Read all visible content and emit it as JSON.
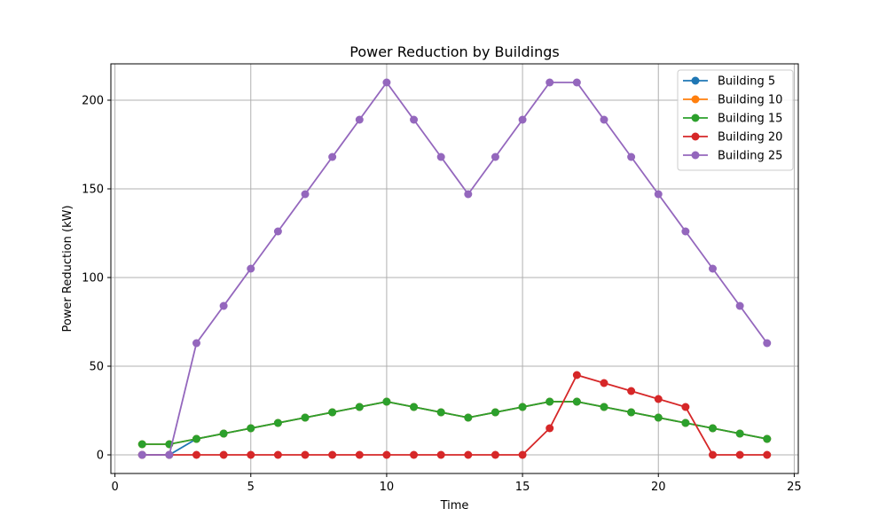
{
  "chart_data": {
    "type": "line",
    "title": "Power Reduction by Buildings",
    "xlabel": "Time",
    "ylabel": "Power Reduction (kW)",
    "xlim": [
      -0.15,
      25.15
    ],
    "ylim": [
      -10.5,
      220.5
    ],
    "xticks": [
      0,
      5,
      10,
      15,
      20,
      25
    ],
    "yticks": [
      0,
      50,
      100,
      150,
      200
    ],
    "grid": true,
    "legend_position": "top-right",
    "x": [
      1,
      2,
      3,
      4,
      5,
      6,
      7,
      8,
      9,
      10,
      11,
      12,
      13,
      14,
      15,
      16,
      17,
      18,
      19,
      20,
      21,
      22,
      23,
      24
    ],
    "series": [
      {
        "name": "Building 5",
        "color": "#1f77b4",
        "values": [
          0,
          0,
          9,
          12,
          15,
          18,
          21,
          24,
          27,
          30,
          27,
          24,
          21,
          24,
          27,
          30,
          30,
          27,
          24,
          21,
          18,
          15,
          12,
          9
        ]
      },
      {
        "name": "Building 10",
        "color": "#ff7f0e",
        "values": [
          6,
          6,
          9,
          12,
          15,
          18,
          21,
          24,
          27,
          30,
          27,
          24,
          21,
          24,
          27,
          30,
          30,
          27,
          24,
          21,
          18,
          15,
          12,
          9
        ]
      },
      {
        "name": "Building 15",
        "color": "#2ca02c",
        "values": [
          6,
          6,
          9,
          12,
          15,
          18,
          21,
          24,
          27,
          30,
          27,
          24,
          21,
          24,
          27,
          30,
          30,
          27,
          24,
          21,
          18,
          15,
          12,
          9
        ]
      },
      {
        "name": "Building 20",
        "color": "#d62728",
        "values": [
          0,
          0,
          0,
          0,
          0,
          0,
          0,
          0,
          0,
          0,
          0,
          0,
          0,
          0,
          0,
          15,
          45,
          40.5,
          36,
          31.5,
          27,
          0,
          0,
          0
        ]
      },
      {
        "name": "Building 25",
        "color": "#9467bd",
        "values": [
          0,
          0,
          63,
          84,
          105,
          126,
          147,
          168,
          189,
          210,
          189,
          168,
          147,
          168,
          189,
          210,
          210,
          189,
          168,
          147,
          126,
          105,
          84,
          63
        ]
      }
    ]
  }
}
